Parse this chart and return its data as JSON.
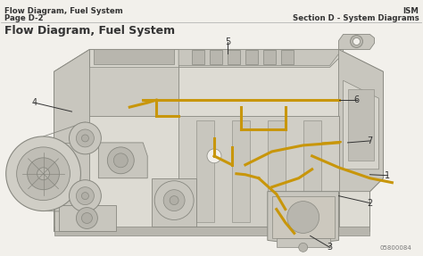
{
  "bg_color": "#f2f0eb",
  "header_left_line1": "Flow Diagram, Fuel System",
  "header_left_line2": "Page D-2",
  "header_right_line1": "ISM",
  "header_right_line2": "Section D - System Diagrams",
  "title_main": "Flow Diagram, Fuel System",
  "footer_text": "05800084",
  "label_color": "#333333",
  "fuel_line_color": "#c8960a",
  "engine_edge": "#888880",
  "engine_body": "#d6d4cc",
  "engine_dark": "#b8b6ae",
  "engine_mid": "#c8c6be"
}
